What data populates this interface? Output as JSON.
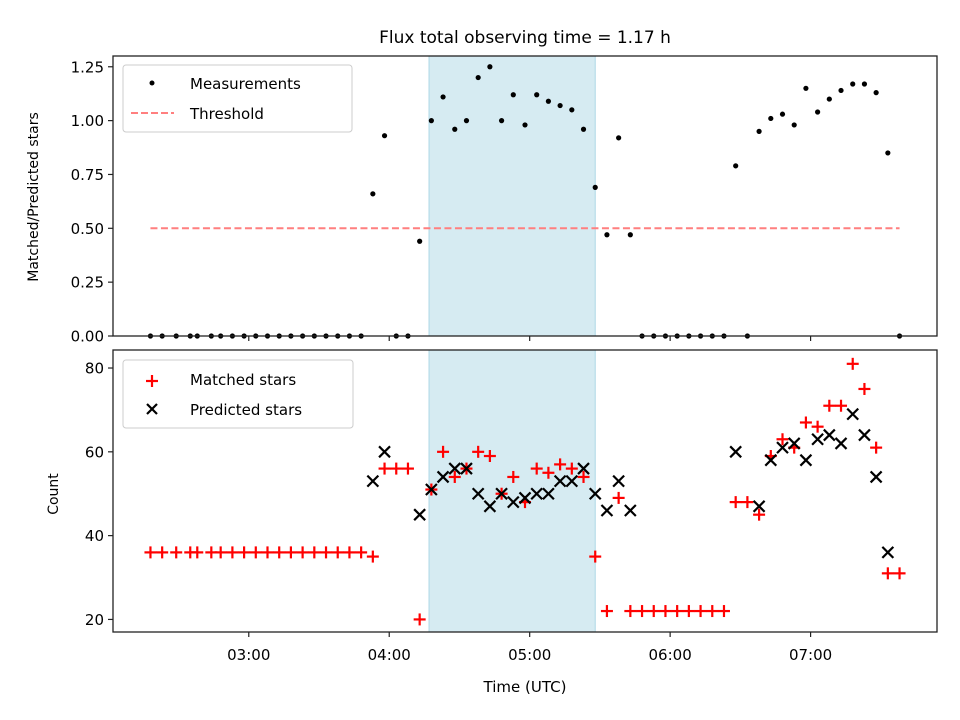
{
  "chart_data": [
    {
      "type": "scatter",
      "panel": "top",
      "title": "Flux total observing time = 1.17 h",
      "xlabel": "",
      "ylabel": "Matched/Predicted stars",
      "xlim": [
        "02:02",
        "07:54"
      ],
      "ylim": [
        0,
        1.3
      ],
      "yticks": [
        "0.00",
        "0.25",
        "0.50",
        "0.75",
        "1.00",
        "1.25"
      ],
      "ytick_values": [
        0,
        0.25,
        0.5,
        0.75,
        1.0,
        1.25
      ],
      "xticks": [
        "03:00",
        "04:00",
        "05:00",
        "06:00",
        "07:00"
      ],
      "grid": false,
      "legend": {
        "placement": "top-left",
        "entries": [
          "Measurements",
          "Threshold"
        ]
      },
      "highlight_span": {
        "start": "04:17",
        "end": "05:28",
        "color": "#add8e6"
      },
      "threshold": {
        "name": "Threshold",
        "value": 0.5,
        "x_start": "02:18",
        "x_end": "07:38",
        "color": "#ff7f7f",
        "style": "dashed"
      },
      "series": [
        {
          "name": "Measurements",
          "color": "#000000",
          "marker": "dot",
          "x": [
            "02:18",
            "02:23",
            "02:29",
            "02:35",
            "02:38",
            "02:44",
            "02:48",
            "02:53",
            "02:58",
            "03:03",
            "03:08",
            "03:13",
            "03:18",
            "03:23",
            "03:28",
            "03:33",
            "03:38",
            "03:43",
            "03:48",
            "03:53",
            "03:58",
            "04:03",
            "04:08",
            "04:13",
            "04:18",
            "04:23",
            "04:28",
            "04:33",
            "04:38",
            "04:43",
            "04:48",
            "04:53",
            "04:58",
            "05:03",
            "05:08",
            "05:13",
            "05:18",
            "05:23",
            "05:28",
            "05:33",
            "05:38",
            "05:43",
            "05:48",
            "05:53",
            "05:58",
            "06:03",
            "06:08",
            "06:13",
            "06:18",
            "06:23",
            "06:28",
            "06:33",
            "06:38",
            "06:43",
            "06:48",
            "06:53",
            "06:58",
            "07:03",
            "07:08",
            "07:13",
            "07:18",
            "07:23",
            "07:28",
            "07:33",
            "07:38"
          ],
          "y": [
            0,
            0,
            0,
            0,
            0,
            0,
            0,
            0,
            0,
            0,
            0,
            0,
            0,
            0,
            0,
            0,
            0,
            0,
            0,
            0.66,
            0.93,
            0,
            0,
            0.44,
            1.0,
            1.11,
            0.96,
            1.0,
            1.2,
            1.25,
            1.0,
            1.12,
            0.98,
            1.12,
            1.09,
            1.07,
            1.05,
            0.96,
            0.69,
            0.47,
            0.92,
            0.47,
            0,
            0,
            0,
            0,
            0,
            0,
            0,
            0,
            0.79,
            0,
            0.95,
            1.01,
            1.03,
            0.98,
            1.15,
            1.04,
            1.1,
            1.14,
            1.17,
            1.17,
            1.13,
            0.85,
            0
          ]
        }
      ]
    },
    {
      "type": "scatter",
      "panel": "bottom",
      "title": "",
      "xlabel": "Time (UTC)",
      "ylabel": "Count",
      "xlim": [
        "02:02",
        "07:54"
      ],
      "ylim": [
        17,
        84.3
      ],
      "yticks": [
        "20",
        "40",
        "60",
        "80"
      ],
      "ytick_values": [
        20,
        40,
        60,
        80
      ],
      "xticks": [
        "03:00",
        "04:00",
        "05:00",
        "06:00",
        "07:00"
      ],
      "grid": false,
      "legend": {
        "placement": "top-left",
        "entries": [
          "Matched stars",
          "Predicted stars"
        ]
      },
      "highlight_span": {
        "start": "04:17",
        "end": "05:28",
        "color": "#add8e6"
      },
      "series": [
        {
          "name": "Matched stars",
          "color": "#ff0000",
          "marker": "plus",
          "x": [
            "02:18",
            "02:23",
            "02:29",
            "02:35",
            "02:38",
            "02:44",
            "02:48",
            "02:53",
            "02:58",
            "03:03",
            "03:08",
            "03:13",
            "03:18",
            "03:23",
            "03:28",
            "03:33",
            "03:38",
            "03:43",
            "03:48",
            "03:53",
            "03:58",
            "04:03",
            "04:08",
            "04:13",
            "04:18",
            "04:23",
            "04:28",
            "04:33",
            "04:38",
            "04:43",
            "04:48",
            "04:53",
            "04:58",
            "05:03",
            "05:08",
            "05:13",
            "05:18",
            "05:23",
            "05:28",
            "05:33",
            "05:38",
            "05:43",
            "05:48",
            "05:53",
            "05:58",
            "06:03",
            "06:08",
            "06:13",
            "06:18",
            "06:23",
            "06:28",
            "06:33",
            "06:38",
            "06:43",
            "06:48",
            "06:53",
            "06:58",
            "07:03",
            "07:08",
            "07:13",
            "07:18",
            "07:23",
            "07:28",
            "07:33",
            "07:38"
          ],
          "y": [
            36,
            36,
            36,
            36,
            36,
            36,
            36,
            36,
            36,
            36,
            36,
            36,
            36,
            36,
            36,
            36,
            36,
            36,
            36,
            35,
            56,
            56,
            56,
            20,
            51,
            60,
            54,
            56,
            60,
            59,
            50,
            54,
            48,
            56,
            55,
            57,
            56,
            54,
            35,
            22,
            49,
            22,
            22,
            22,
            22,
            22,
            22,
            22,
            22,
            22,
            48,
            48,
            45,
            59,
            63,
            61,
            67,
            66,
            71,
            71,
            81,
            75,
            61,
            31,
            31
          ]
        },
        {
          "name": "Predicted stars",
          "color": "#000000",
          "marker": "x",
          "x": [
            "03:53",
            "03:58",
            "04:13",
            "04:18",
            "04:23",
            "04:28",
            "04:33",
            "04:38",
            "04:43",
            "04:48",
            "04:53",
            "04:58",
            "05:03",
            "05:08",
            "05:13",
            "05:18",
            "05:23",
            "05:28",
            "05:33",
            "05:38",
            "05:43",
            "06:28",
            "06:38",
            "06:43",
            "06:48",
            "06:53",
            "06:58",
            "07:03",
            "07:08",
            "07:13",
            "07:18",
            "07:23",
            "07:28",
            "07:33"
          ],
          "y": [
            53,
            60,
            45,
            51,
            54,
            56,
            56,
            50,
            47,
            50,
            48,
            49,
            50,
            50,
            53,
            53,
            56,
            50,
            46,
            53,
            46,
            60,
            47,
            58,
            61,
            62,
            58,
            63,
            64,
            62,
            69,
            64,
            54,
            36
          ]
        }
      ]
    }
  ]
}
